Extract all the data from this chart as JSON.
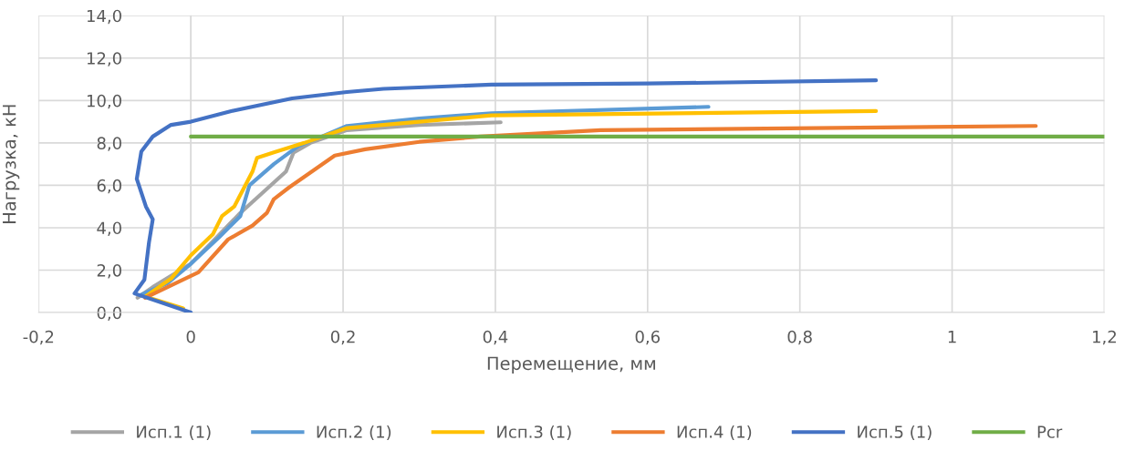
{
  "chart_data": {
    "type": "line",
    "xlabel": "Перемещение, мм",
    "ylabel": "Нагрузка, кН",
    "xlim": [
      -0.2,
      1.2
    ],
    "ylim": [
      0,
      14
    ],
    "xticks": [
      {
        "value": -0.2,
        "label": "-0,2"
      },
      0,
      {
        "value": 0.2,
        "label": "0,2"
      },
      {
        "value": 0.4,
        "label": "0,4"
      },
      {
        "value": 0.6,
        "label": "0,6"
      },
      {
        "value": 0.8,
        "label": "0,8"
      },
      1,
      {
        "value": 1.2,
        "label": "1,2"
      }
    ],
    "yticks": [
      {
        "value": 0,
        "label": "0,0"
      },
      {
        "value": 2,
        "label": "2,0"
      },
      {
        "value": 4,
        "label": "4,0"
      },
      {
        "value": 6,
        "label": "6,0"
      },
      {
        "value": 8,
        "label": "8,0"
      },
      {
        "value": 10,
        "label": "10,0"
      },
      {
        "value": 12,
        "label": "12,0"
      },
      {
        "value": 14,
        "label": "14,0"
      }
    ],
    "grid": true,
    "legend": "bottom",
    "marker": "none",
    "line_style": "solid",
    "series": [
      {
        "name": "Исп.1 (1)",
        "color": "#a5a5a5",
        "x": [
          -0.07,
          -0.05,
          0.0,
          0.03,
          0.065,
          0.125,
          0.135,
          0.157,
          0.205,
          0.3,
          0.407
        ],
        "values": [
          0.7,
          1.2,
          2.3,
          3.4,
          4.7,
          6.65,
          7.55,
          8.0,
          8.6,
          8.85,
          8.97
        ]
      },
      {
        "name": "Исп.2 (1)",
        "color": "#5b9bd5",
        "x": [
          -0.065,
          -0.03,
          0.0,
          0.037,
          0.065,
          0.077,
          0.109,
          0.141,
          0.172,
          0.205,
          0.3,
          0.395,
          0.68
        ],
        "values": [
          0.85,
          1.4,
          2.3,
          3.55,
          4.55,
          6.0,
          7.0,
          7.85,
          8.3,
          8.8,
          9.15,
          9.4,
          9.7
        ]
      },
      {
        "name": "Исп.3 (1)",
        "color": "#ffc000",
        "x": [
          -0.01,
          -0.06,
          -0.026,
          0.0,
          0.029,
          0.041,
          0.057,
          0.081,
          0.087,
          0.109,
          0.149,
          0.181,
          0.205,
          0.395,
          0.9
        ],
        "values": [
          0.2,
          0.75,
          1.6,
          2.7,
          3.7,
          4.55,
          5.0,
          6.65,
          7.3,
          7.55,
          8.0,
          8.4,
          8.7,
          9.3,
          9.5
        ]
      },
      {
        "name": "Исп.4 (1)",
        "color": "#ed7d31",
        "x": [
          -0.06,
          0.01,
          0.049,
          0.081,
          0.1,
          0.109,
          0.129,
          0.189,
          0.229,
          0.3,
          0.38,
          0.538,
          1.11
        ],
        "values": [
          0.7,
          1.9,
          3.45,
          4.1,
          4.7,
          5.35,
          5.9,
          7.4,
          7.7,
          8.05,
          8.3,
          8.6,
          8.8
        ]
      },
      {
        "name": "Исп.5 (1)",
        "color": "#4472c4",
        "x": [
          0.0,
          -0.074,
          -0.061,
          -0.055,
          -0.05,
          -0.059,
          -0.071,
          -0.065,
          -0.05,
          -0.026,
          0.0,
          0.053,
          0.133,
          0.205,
          0.253,
          0.395,
          0.6,
          0.9
        ],
        "values": [
          0.0,
          0.9,
          1.55,
          3.3,
          4.4,
          5.0,
          6.3,
          7.6,
          8.3,
          8.85,
          9.0,
          9.5,
          10.1,
          10.4,
          10.55,
          10.75,
          10.8,
          10.95
        ]
      },
      {
        "name": "Pcr",
        "color": "#70ad47",
        "x": [
          0,
          1.2
        ],
        "values": [
          8.3,
          8.3
        ]
      }
    ]
  }
}
